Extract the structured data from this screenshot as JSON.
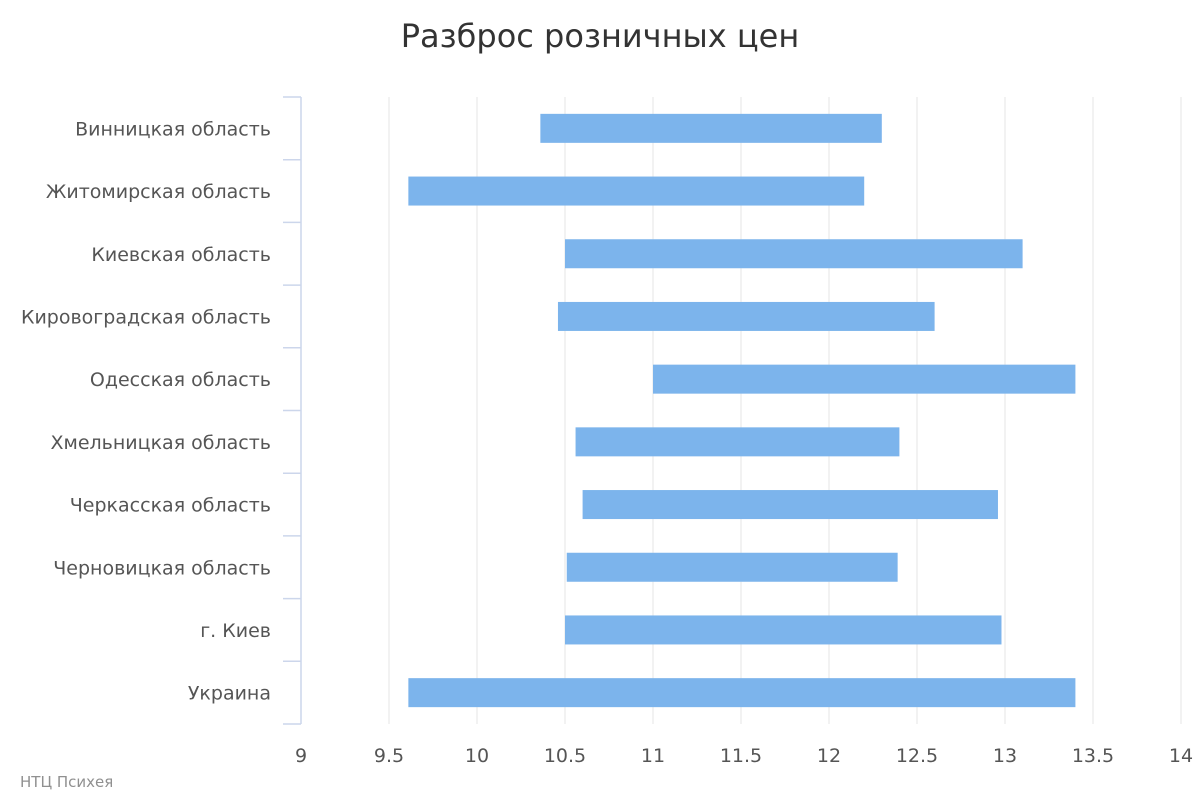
{
  "chart_data": {
    "type": "bar",
    "orientation": "horizontal",
    "bar_style": "floating-range",
    "title": "Разброс розничных цен",
    "xlabel": "",
    "ylabel": "",
    "xlim": [
      9,
      14
    ],
    "x_ticks": [
      9,
      9.5,
      10,
      10.5,
      11,
      11.5,
      12,
      12.5,
      13,
      13.5,
      14
    ],
    "x_tick_labels": [
      "9",
      "9.5",
      "10",
      "10.5",
      "11",
      "11.5",
      "12",
      "12.5",
      "13",
      "13.5",
      "14"
    ],
    "grid": true,
    "legend": "none",
    "bar_color": "#7cb4ec",
    "categories": [
      "Винницкая область",
      "Житомирская область",
      "Киевская область",
      "Кировоградская область",
      "Одесская область",
      "Хмельницкая область",
      "Черкасская область",
      "Черновицкая область",
      "г. Киев",
      "Украина"
    ],
    "series": [
      {
        "ranges": [
          [
            10.36,
            12.3
          ],
          [
            9.61,
            12.2
          ],
          [
            10.5,
            13.1
          ],
          [
            10.46,
            12.6
          ],
          [
            11.0,
            13.4
          ],
          [
            10.56,
            12.4
          ],
          [
            10.6,
            12.96
          ],
          [
            10.51,
            12.39
          ],
          [
            10.5,
            12.98
          ],
          [
            9.61,
            13.4
          ]
        ]
      }
    ]
  },
  "credit": "НТЦ Психея"
}
